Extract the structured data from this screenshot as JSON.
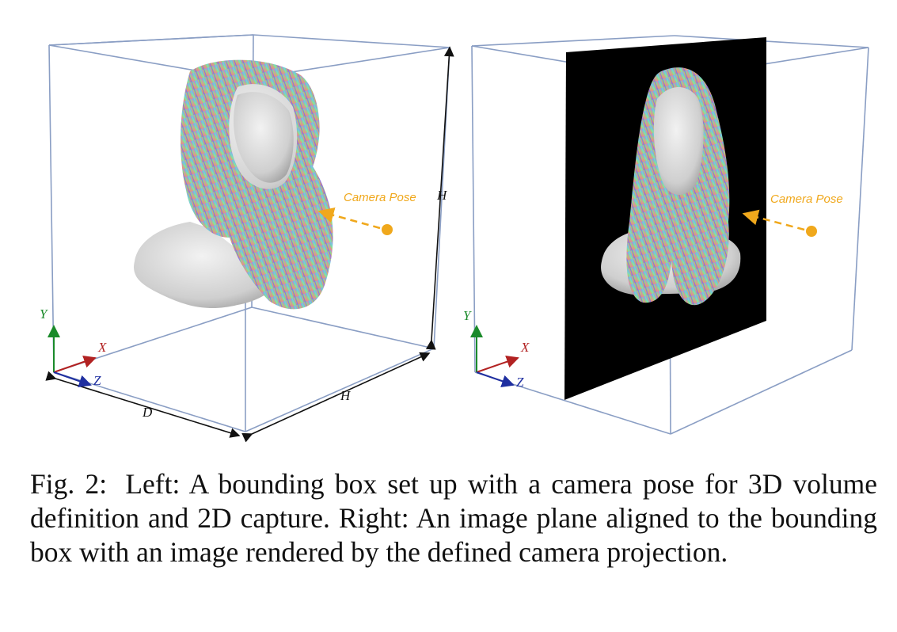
{
  "figure": {
    "left_panel": {
      "camera_label": "Camera Pose",
      "dim_height_right": "H",
      "dim_height_bottom": "H",
      "dim_depth": "D",
      "axis_x": "X",
      "axis_y": "Y",
      "axis_z": "Z"
    },
    "right_panel": {
      "camera_label": "Camera Pose",
      "axis_x": "X",
      "axis_y": "Y",
      "axis_z": "Z"
    },
    "colors": {
      "box_edge": "#8a9ec4",
      "camera": "#f0a81c",
      "axis_x": "#b22222",
      "axis_y": "#1a8a2a",
      "axis_z": "#1f2fa0",
      "image_plane": "#000000"
    }
  },
  "caption": {
    "label": "Fig. 2:",
    "text": "Left: A bounding box set up with a camera pose for 3D volume definition and 2D capture. Right: An image plane aligned to the bounding box with an image rendered by the defined camera projection."
  }
}
